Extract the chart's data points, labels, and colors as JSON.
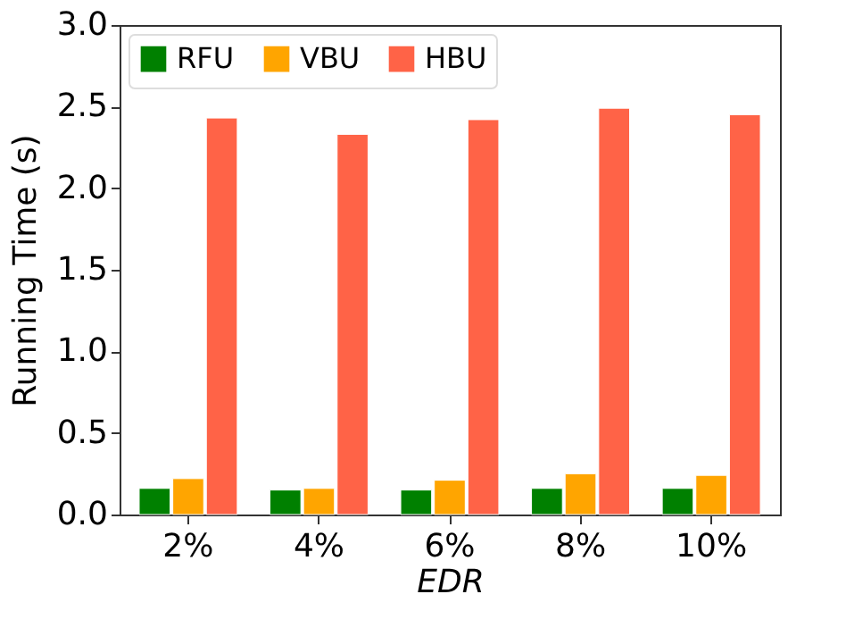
{
  "chart_data": {
    "type": "bar",
    "xlabel": "EDR",
    "ylabel": "Running Time (s)",
    "categories": [
      "2%",
      "4%",
      "6%",
      "8%",
      "10%"
    ],
    "series": [
      {
        "name": "RFU",
        "color": "#008000",
        "values": [
          0.16,
          0.15,
          0.15,
          0.16,
          0.16
        ]
      },
      {
        "name": "VBU",
        "color": "#ffa500",
        "values": [
          0.22,
          0.16,
          0.21,
          0.25,
          0.24
        ]
      },
      {
        "name": "HBU",
        "color": "#ff6347",
        "values": [
          2.43,
          2.33,
          2.42,
          2.49,
          2.45
        ]
      }
    ],
    "ylim": [
      0,
      3
    ],
    "yticks": [
      {
        "value": 0,
        "label": "0.0"
      },
      {
        "value": 0.5,
        "label": "0.5"
      },
      {
        "value": 1,
        "label": "1.0"
      },
      {
        "value": 1.5,
        "label": "1.5"
      },
      {
        "value": 2,
        "label": "2.0"
      },
      {
        "value": 2.5,
        "label": "2.5"
      },
      {
        "value": 3,
        "label": "3.0"
      }
    ],
    "grid": false,
    "legend": "top left"
  }
}
